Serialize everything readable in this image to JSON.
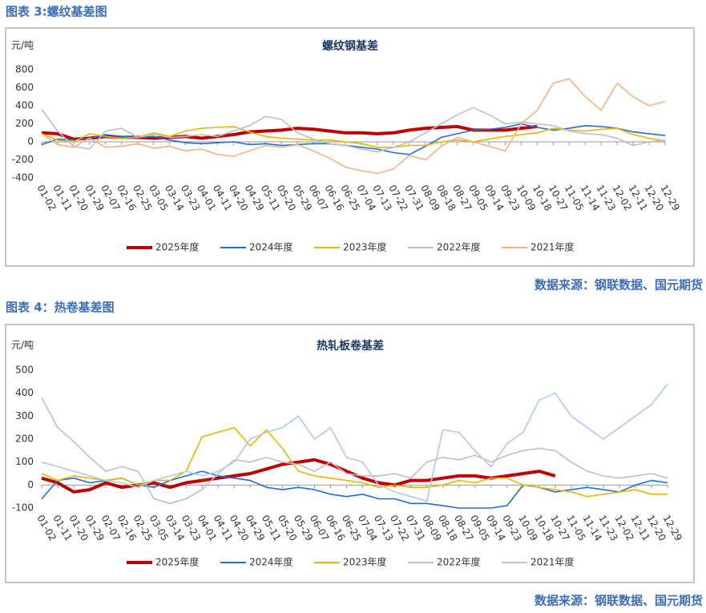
{
  "chart_data": [
    {
      "type": "line",
      "caption": "图表 3:螺纹基差图",
      "title": "螺纹钢基差",
      "y_label": "元/吨",
      "source": "数据来源：钢联数据、国元期货",
      "categories": [
        "01-02",
        "01-11",
        "01-20",
        "01-29",
        "02-07",
        "02-16",
        "02-25",
        "03-05",
        "03-14",
        "03-23",
        "04-01",
        "04-11",
        "04-20",
        "04-29",
        "05-11",
        "05-20",
        "05-29",
        "06-07",
        "06-16",
        "06-25",
        "07-04",
        "07-13",
        "07-22",
        "07-31",
        "08-09",
        "08-18",
        "08-27",
        "09-05",
        "09-14",
        "09-23",
        "10-09",
        "10-18",
        "10-27",
        "11-05",
        "11-14",
        "11-23",
        "12-02",
        "12-11",
        "12-20",
        "12-29"
      ],
      "ylim": [
        -400,
        800
      ],
      "yticks": [
        -400,
        -200,
        0,
        200,
        400,
        600,
        800
      ],
      "grid": false,
      "series": [
        {
          "name": "2025年度",
          "color": "#c00000",
          "values": [
            100,
            90,
            30,
            40,
            60,
            50,
            50,
            40,
            50,
            60,
            40,
            60,
            80,
            110,
            120,
            130,
            150,
            140,
            120,
            100,
            100,
            90,
            100,
            130,
            150,
            160,
            170,
            130,
            130,
            130,
            150,
            170,
            null,
            null,
            null,
            null,
            null,
            null,
            null,
            null
          ]
        },
        {
          "name": "2024年度",
          "color": "#1f6fdb",
          "values": [
            -30,
            30,
            20,
            40,
            80,
            60,
            50,
            60,
            20,
            -10,
            -20,
            -10,
            0,
            -30,
            -20,
            -40,
            -30,
            -20,
            -20,
            -40,
            -60,
            -80,
            -120,
            -140,
            -50,
            50,
            90,
            130,
            140,
            160,
            200,
            160,
            130,
            150,
            180,
            170,
            150,
            110,
            90,
            70
          ]
        },
        {
          "name": "2023年度",
          "color": "#e6b800",
          "values": [
            90,
            20,
            0,
            90,
            60,
            40,
            50,
            100,
            60,
            120,
            150,
            160,
            170,
            110,
            60,
            40,
            30,
            20,
            20,
            0,
            -20,
            -60,
            -60,
            -40,
            -40,
            0,
            20,
            0,
            30,
            60,
            80,
            100,
            150,
            130,
            120,
            140,
            150,
            80,
            40,
            10
          ]
        },
        {
          "name": "2022年度",
          "color": "#bfbfbf",
          "values": [
            360,
            120,
            -50,
            -80,
            120,
            150,
            50,
            80,
            50,
            60,
            80,
            60,
            120,
            180,
            280,
            250,
            100,
            30,
            -20,
            -40,
            -80,
            -110,
            -60,
            0,
            100,
            200,
            300,
            380,
            300,
            200,
            220,
            200,
            180,
            120,
            90,
            80,
            40,
            -40,
            0,
            20
          ]
        },
        {
          "name": "2021年度",
          "color": "#f4b183",
          "values": [
            90,
            -30,
            -60,
            40,
            -60,
            -50,
            -20,
            -70,
            -50,
            -100,
            -80,
            -140,
            -160,
            -100,
            -40,
            -60,
            -30,
            -100,
            -180,
            -280,
            -320,
            -350,
            -300,
            -150,
            -200,
            -50,
            50,
            0,
            -50,
            -100,
            200,
            350,
            650,
            700,
            500,
            350,
            650,
            500,
            400,
            450
          ]
        }
      ]
    },
    {
      "type": "line",
      "caption": "图表 4：热卷基差图",
      "title": "热轧板卷基差",
      "y_label": "元/吨",
      "source": "数据来源：钢联数据、国元期货",
      "categories": [
        "01-02",
        "01-11",
        "01-20",
        "01-29",
        "02-07",
        "02-16",
        "02-25",
        "03-05",
        "03-14",
        "03-23",
        "04-01",
        "04-11",
        "04-20",
        "04-29",
        "05-11",
        "05-20",
        "05-29",
        "06-07",
        "06-16",
        "06-25",
        "07-04",
        "07-13",
        "07-22",
        "07-31",
        "08-09",
        "08-18",
        "08-27",
        "09-05",
        "09-14",
        "09-23",
        "10-09",
        "10-18",
        "10-27",
        "11-05",
        "11-14",
        "11-23",
        "12-02",
        "12-11",
        "12-20",
        "12-29"
      ],
      "ylim": [
        -100,
        500
      ],
      "yticks": [
        -100,
        0,
        100,
        200,
        300,
        400,
        500
      ],
      "grid": false,
      "series": [
        {
          "name": "2025年度",
          "color": "#c00000",
          "values": [
            30,
            10,
            -30,
            -20,
            10,
            -10,
            0,
            10,
            -10,
            10,
            20,
            30,
            40,
            50,
            70,
            90,
            100,
            110,
            90,
            60,
            30,
            10,
            0,
            20,
            20,
            30,
            40,
            40,
            30,
            40,
            50,
            60,
            40,
            null,
            null,
            null,
            null,
            null,
            null,
            null
          ]
        },
        {
          "name": "2024年度",
          "color": "#1f6fdb",
          "values": [
            -60,
            20,
            30,
            10,
            20,
            30,
            0,
            -10,
            20,
            40,
            60,
            40,
            30,
            20,
            -10,
            -20,
            -10,
            -20,
            -40,
            -50,
            -40,
            -60,
            -60,
            -80,
            -80,
            -90,
            -100,
            -100,
            -100,
            -90,
            0,
            -10,
            -30,
            -20,
            -10,
            -20,
            -30,
            0,
            20,
            10
          ]
        },
        {
          "name": "2023年度",
          "color": "#e6b800",
          "values": [
            50,
            20,
            40,
            30,
            20,
            30,
            0,
            20,
            20,
            60,
            210,
            230,
            250,
            170,
            240,
            160,
            60,
            40,
            30,
            20,
            10,
            -10,
            0,
            -10,
            -10,
            0,
            20,
            10,
            30,
            30,
            0,
            -10,
            -20,
            -30,
            -50,
            -40,
            -30,
            -20,
            -40,
            -40
          ]
        },
        {
          "name": "2022年度",
          "color": "#bfbfbf",
          "values": [
            380,
            250,
            190,
            120,
            60,
            80,
            60,
            -60,
            -80,
            -60,
            -20,
            50,
            110,
            100,
            120,
            100,
            90,
            60,
            100,
            50,
            40,
            40,
            50,
            30,
            100,
            120,
            110,
            130,
            100,
            130,
            150,
            160,
            150,
            100,
            60,
            40,
            30,
            40,
            50,
            30
          ]
        },
        {
          "name": "2021年度",
          "color": "#b4c7e7",
          "values": [
            100,
            80,
            60,
            40,
            20,
            10,
            -10,
            20,
            40,
            60,
            40,
            60,
            100,
            200,
            230,
            250,
            300,
            200,
            250,
            120,
            100,
            0,
            -30,
            -50,
            -70,
            240,
            230,
            150,
            80,
            180,
            230,
            370,
            400,
            300,
            250,
            200,
            250,
            300,
            350,
            440
          ]
        }
      ]
    }
  ]
}
